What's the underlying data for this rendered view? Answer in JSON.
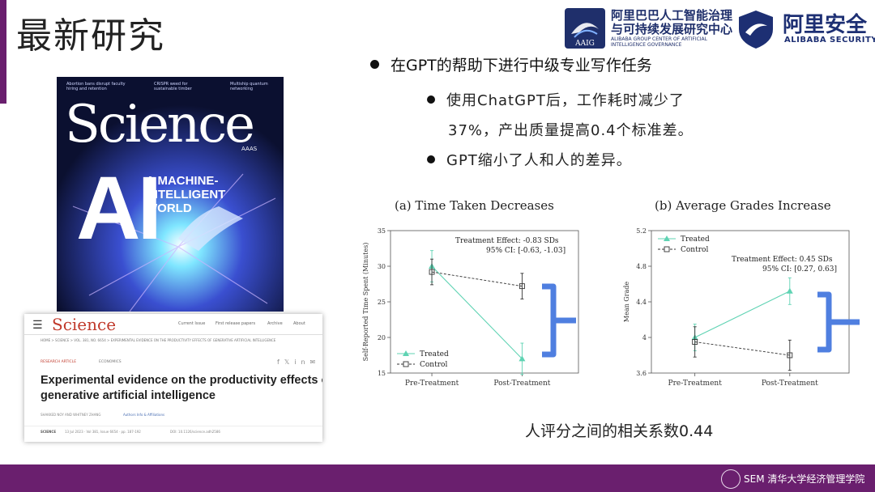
{
  "slide": {
    "title": "最新研究",
    "main_bullet": "在GPT的帮助下进行中级专业写作任务",
    "sub_bullet_1_line1": "使用ChatGPT后，工作耗时减少了",
    "sub_bullet_1_line2": "37%，产出质量提高0.4个标准差。",
    "sub_bullet_2": "GPT缩小了人和人的差异。",
    "bottom_note": "人评分之间的相关系数0.44"
  },
  "logos": {
    "aaig_cn_line1": "阿里巴巴人工智能治理",
    "aaig_cn_line2": "与可持续发展研究中心",
    "aaig_en_line1": "ALIBABA GROUP CENTER OF ARTIFICIAL",
    "aaig_en_line2": "INTELLIGENCE GOVERNANCE",
    "aaig_badge": "AAIG",
    "alibaba_security_cn": "阿里安全",
    "alibaba_security_en": "ALIBABA SECURITY",
    "footer_logo": "SEM 清华大学经济管理学院"
  },
  "cover": {
    "masthead": "Science",
    "headline_1": "Abortion bans disrupt faculty hiring and retention",
    "headline_2": "CRISPR weed for sustainable timber",
    "headline_3": "Multiship quantum networking",
    "big_text": "AI",
    "subtitle_line1": "A MACHINE-",
    "subtitle_line2": "INTELLIGENT",
    "subtitle_line3": "WORLD",
    "publisher": "AAAS"
  },
  "article": {
    "site_name": "Science",
    "nav_1": "Current Issue",
    "nav_2": "First release papers",
    "nav_3": "Archive",
    "nav_4": "About",
    "breadcrumb": "HOME > SCIENCE > VOL. 381, NO. 6654 > EXPERIMENTAL EVIDENCE ON THE PRODUCTIVITY EFFECTS OF GENERATIVE ARTIFICIAL INTELLIGENCE",
    "tag": "RESEARCH ARTICLE",
    "access": "ECONOMICS",
    "title_line1": "Experimental evidence on the productivity effects of",
    "title_line2": "generative artificial intelligence",
    "authors": "SHAKKED NOY AND WHITNEY ZHANG",
    "authors_info": "Authors Info & Affiliations",
    "journal": "SCIENCE",
    "citation": "13 Jul 2023 · Vol 381, Issue 6654 · pp. 187-192",
    "doi": "DOI: 10.1126/science.adh2586"
  },
  "chart_data": [
    {
      "type": "line",
      "title": "(a) Time Taken Decreases",
      "xlabel": "",
      "ylabel": "Self-Reported Time Spent (Minutes)",
      "categories": [
        "Pre-Treatment",
        "Post-Treatment"
      ],
      "ylim": [
        15,
        35
      ],
      "yticks": [
        15,
        20,
        25,
        30,
        35
      ],
      "series": [
        {
          "name": "Treated",
          "values": [
            30,
            17
          ],
          "err": [
            2.2,
            2.2
          ],
          "color": "#5fd3b3",
          "marker": "triangle",
          "line": "solid"
        },
        {
          "name": "Control",
          "values": [
            29.2,
            27.2
          ],
          "err": [
            1.8,
            1.8
          ],
          "color": "#333333",
          "marker": "square",
          "line": "dashed"
        }
      ],
      "annotation_line1": "Treatment Effect:   -0.83 SDs",
      "annotation_line2": "95% CI:  [-0.63, -1.03]",
      "legend": "bottom-left"
    },
    {
      "type": "line",
      "title": "(b) Average Grades Increase",
      "xlabel": "",
      "ylabel": "Mean Grade",
      "categories": [
        "Pre-Treatment",
        "Post-Treatment"
      ],
      "ylim": [
        3.6,
        5.2
      ],
      "yticks": [
        3.6,
        4,
        4.4,
        4.8,
        5.2
      ],
      "ytick_labels": [
        "3.6",
        "4",
        "4.4",
        "4.8",
        "5.2"
      ],
      "series": [
        {
          "name": "Treated",
          "values": [
            4.0,
            4.52
          ],
          "err": [
            0.15,
            0.15
          ],
          "color": "#5fd3b3",
          "marker": "triangle",
          "line": "solid"
        },
        {
          "name": "Control",
          "values": [
            3.95,
            3.8
          ],
          "err": [
            0.17,
            0.17
          ],
          "color": "#333333",
          "marker": "square",
          "line": "dashed"
        }
      ],
      "annotation_line1": "Treatment Effect:   0.45 SDs",
      "annotation_line2": "95% CI:  [0.27, 0.63]",
      "legend": "top-left"
    }
  ],
  "colors": {
    "accent_purple": "#6a1f6e",
    "brace_blue": "#4f7fe0",
    "logo_navy": "#1f2f6b"
  }
}
